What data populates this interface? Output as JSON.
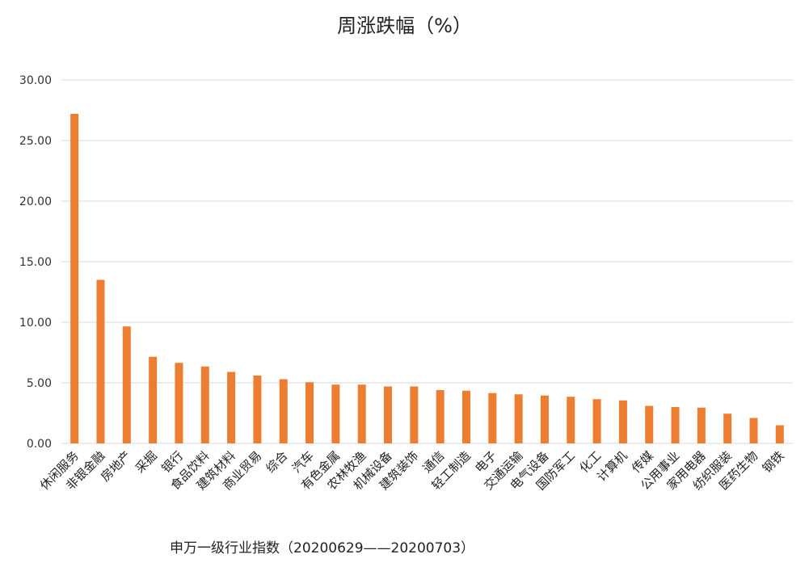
{
  "chart_data": {
    "type": "bar",
    "title": "周涨跌幅（%）",
    "subtitle": "申万一级行业指数（20200629——20200703）",
    "xlabel": "",
    "ylabel": "",
    "ylim": [
      0,
      30
    ],
    "y_ticks": [
      "0.00",
      "5.00",
      "10.00",
      "15.00",
      "20.00",
      "25.00",
      "30.00"
    ],
    "grid": true,
    "bar_color": "#ED7D31",
    "grid_color": "#D9D9D9",
    "categories": [
      "休闲服务",
      "非银金融",
      "房地产",
      "采掘",
      "银行",
      "食品饮料",
      "建筑材料",
      "商业贸易",
      "综合",
      "汽车",
      "有色金属",
      "农林牧渔",
      "机械设备",
      "建筑装饰",
      "通信",
      "轻工制造",
      "电子",
      "交通运输",
      "电气设备",
      "国防军工",
      "化工",
      "计算机",
      "传媒",
      "公用事业",
      "家用电器",
      "纺织服装",
      "医药生物",
      "钢铁"
    ],
    "values": [
      27.2,
      13.5,
      9.65,
      7.15,
      6.65,
      6.35,
      5.9,
      5.6,
      5.3,
      5.05,
      4.85,
      4.85,
      4.7,
      4.7,
      4.4,
      4.35,
      4.15,
      4.05,
      3.95,
      3.85,
      3.65,
      3.55,
      3.1,
      3.0,
      2.95,
      2.45,
      2.1,
      1.5
    ]
  }
}
